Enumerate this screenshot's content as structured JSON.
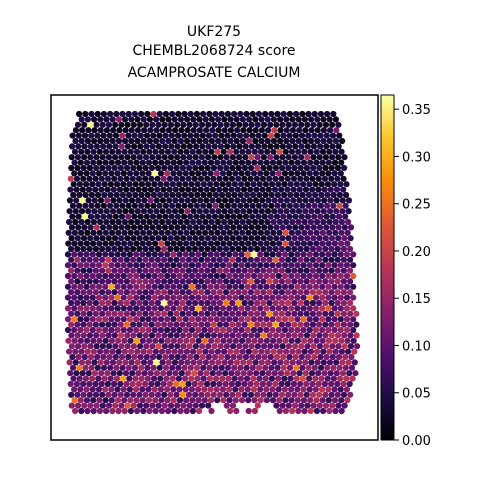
{
  "chart_data": {
    "type": "scatter",
    "title": [
      "UKF275",
      "CHEMBL2068724 score",
      "ACAMPROSATE CALCIUM"
    ],
    "xlabel": "",
    "ylabel": "",
    "grid": false,
    "colormap": "inferno",
    "colorbar": {
      "range": [
        0.0,
        0.365
      ],
      "ticks": [
        0.0,
        0.05,
        0.1,
        0.15,
        0.2,
        0.25,
        0.3,
        0.35
      ],
      "tick_labels": [
        "0.00",
        "0.05",
        "0.10",
        "0.15",
        "0.20",
        "0.25",
        "0.30",
        "0.35"
      ]
    },
    "description_values": {
      "top_region_typical_score": 0.03,
      "bottom_left_typical_score": 0.11,
      "bottom_right_typical_score": 0.13,
      "max_score": 0.36
    }
  }
}
